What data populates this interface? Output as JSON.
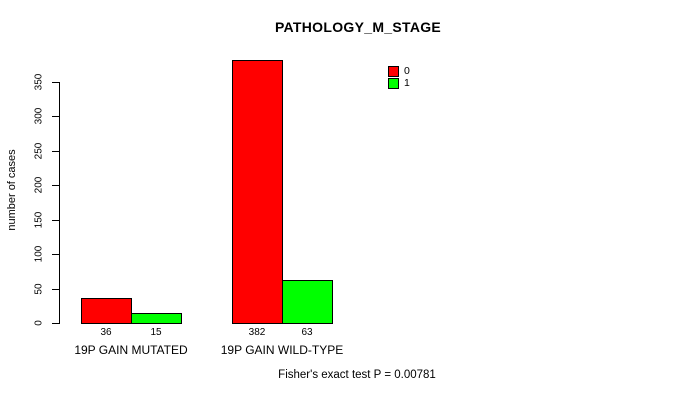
{
  "chart_data": {
    "type": "bar",
    "title": "PATHOLOGY_M_STAGE",
    "ylabel": "number of cases",
    "xlabel": "",
    "ylim": [
      0,
      350
    ],
    "yticks": [
      0,
      50,
      100,
      150,
      200,
      250,
      300,
      350
    ],
    "categories": [
      "19P GAIN MUTATED",
      "19P GAIN WILD-TYPE"
    ],
    "series": [
      {
        "name": "0",
        "color": "#FF0000",
        "values": [
          36,
          382
        ]
      },
      {
        "name": "1",
        "color": "#00FF00",
        "values": [
          15,
          63
        ]
      }
    ],
    "bar_value_labels": [
      [
        "36",
        "382"
      ],
      [
        "15",
        "63"
      ]
    ],
    "legend_position": "top-right",
    "grid": false,
    "annotation": "Fisher's exact test P = 0.00781"
  }
}
